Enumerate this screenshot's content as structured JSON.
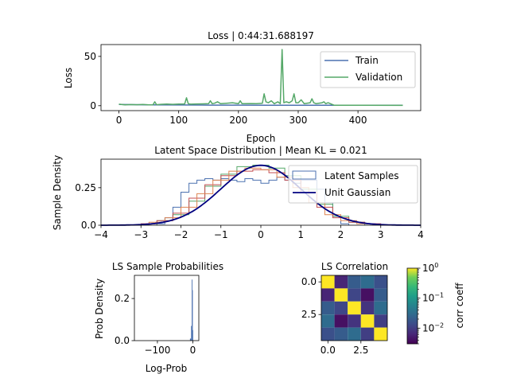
{
  "chart_data": [
    {
      "type": "line",
      "title": "Loss | 0:44:31.688197",
      "xlabel": "Epoch",
      "ylabel": "Loss",
      "xlim": [
        -30,
        505
      ],
      "ylim": [
        -5,
        62
      ],
      "xticks": [
        0,
        100,
        200,
        300,
        400
      ],
      "yticks": [
        0,
        50
      ],
      "grid": false,
      "legend_position": "top-right",
      "series": [
        {
          "name": "Train",
          "color": "#4c72b0",
          "x": [
            0,
            50,
            100,
            150,
            200,
            250,
            300,
            350,
            400,
            475
          ],
          "y": [
            1.2,
            0.8,
            0.7,
            0.6,
            0.6,
            0.5,
            0.5,
            0.5,
            0.4,
            0.4
          ]
        },
        {
          "name": "Validation",
          "color": "#55a868",
          "x": [
            0,
            10,
            20,
            30,
            40,
            50,
            57,
            60,
            63,
            70,
            80,
            90,
            100,
            110,
            113,
            116,
            120,
            130,
            140,
            150,
            153,
            156,
            160,
            165,
            170,
            180,
            190,
            200,
            203,
            206,
            210,
            220,
            230,
            240,
            243,
            246,
            250,
            255,
            260,
            266,
            270,
            273,
            276,
            280,
            285,
            290,
            293,
            296,
            300,
            305,
            310,
            320,
            323,
            326,
            330,
            340,
            343,
            346,
            350,
            360,
            400,
            475
          ],
          "y": [
            1.5,
            0.9,
            1.1,
            1.0,
            1.3,
            0.9,
            1.0,
            4.0,
            1.0,
            1.4,
            1.6,
            1.4,
            1.6,
            1.8,
            8.0,
            2.0,
            1.5,
            1.8,
            1.9,
            2.0,
            5.0,
            2.0,
            2.5,
            4.0,
            2.0,
            2.5,
            3.0,
            2.0,
            5.0,
            2.0,
            2.0,
            2.2,
            2.0,
            2.5,
            12.0,
            4.0,
            3.0,
            5.0,
            2.0,
            4.0,
            2.0,
            57.0,
            3.0,
            4.0,
            3.0,
            5.0,
            12.0,
            3.0,
            3.0,
            6.0,
            2.0,
            3.0,
            7.0,
            3.0,
            2.0,
            3.0,
            4.0,
            2.0,
            3.0,
            0.5,
            0.4,
            0.3
          ]
        }
      ]
    },
    {
      "type": "line",
      "title": "Latent Space Distribution | Mean KL = 0.021",
      "xlabel": "",
      "ylabel": "Sample Density",
      "xlim": [
        -4,
        4
      ],
      "ylim": [
        0,
        0.44
      ],
      "xticks": [
        -4,
        -3,
        -2,
        -1,
        0,
        1,
        2,
        3,
        4
      ],
      "yticks": [
        0.0,
        0.25
      ],
      "grid": false,
      "legend_position": "top-right",
      "legend": [
        {
          "name": "Latent Samples",
          "kind": "step",
          "color": "#4c72b0"
        },
        {
          "name": "Unit Gaussian",
          "kind": "line",
          "color": "#000080"
        }
      ],
      "gaussian": {
        "name": "Unit Gaussian",
        "color": "#000080",
        "mean": 0,
        "std": 1
      },
      "histograms": [
        {
          "color": "#4c72b0",
          "edges": [
            -2.6,
            -2.4,
            -2.2,
            -2.0,
            -1.8,
            -1.6,
            -1.4,
            -1.2,
            -1.0,
            -0.8,
            -0.6,
            -0.4,
            -0.2,
            0.0,
            0.2,
            0.4,
            0.6,
            0.8,
            1.0,
            1.2,
            1.4,
            1.6,
            1.8,
            2.0,
            2.2
          ],
          "values": [
            0.01,
            0.05,
            0.12,
            0.22,
            0.28,
            0.3,
            0.31,
            0.3,
            0.31,
            0.3,
            0.29,
            0.31,
            0.3,
            0.28,
            0.3,
            0.32,
            0.3,
            0.28,
            0.3,
            0.3,
            0.24,
            0.15,
            0.06,
            0.01
          ]
        },
        {
          "color": "#55a868",
          "edges": [
            -2.6,
            -2.2,
            -1.8,
            -1.4,
            -1.0,
            -0.6,
            -0.2,
            0.2,
            0.6,
            1.0,
            1.4,
            1.8,
            2.2,
            2.6
          ],
          "values": [
            0.03,
            0.07,
            0.16,
            0.26,
            0.34,
            0.39,
            0.4,
            0.38,
            0.33,
            0.24,
            0.14,
            0.06,
            0.02
          ]
        },
        {
          "color": "#c44e52",
          "edges": [
            -3.0,
            -2.6,
            -2.2,
            -1.8,
            -1.4,
            -1.0,
            -0.6,
            -0.2,
            0.2,
            0.6,
            1.0,
            1.4,
            1.8,
            2.2,
            2.6,
            3.0
          ],
          "values": [
            0.01,
            0.03,
            0.08,
            0.18,
            0.27,
            0.33,
            0.36,
            0.37,
            0.35,
            0.3,
            0.22,
            0.12,
            0.05,
            0.02,
            0.01
          ]
        },
        {
          "color": "#dd8452",
          "edges": [
            -2.8,
            -2.4,
            -2.0,
            -1.6,
            -1.2,
            -0.8,
            -0.4,
            0.0,
            0.4,
            0.8,
            1.2,
            1.6,
            2.0,
            2.4,
            2.8
          ],
          "values": [
            0.02,
            0.05,
            0.12,
            0.21,
            0.3,
            0.36,
            0.38,
            0.37,
            0.32,
            0.25,
            0.15,
            0.07,
            0.03,
            0.01
          ]
        }
      ]
    },
    {
      "type": "bar",
      "title": "LS Sample Probabilities",
      "xlabel": "Log-Prob",
      "ylabel": "Prob Density",
      "xlim": [
        -165,
        17
      ],
      "ylim": [
        0,
        0.31
      ],
      "xticks": [
        -100,
        0
      ],
      "yticks": [
        0.0,
        0.2
      ],
      "grid": false,
      "color": "#4c72b0",
      "bins": [
        {
          "x0": -8,
          "x1": -5,
          "value": 0.01
        },
        {
          "x0": -5,
          "x1": -3,
          "value": 0.07
        },
        {
          "x0": -3,
          "x1": -2,
          "value": 0.29
        },
        {
          "x0": -2,
          "x1": -1,
          "value": 0.24
        },
        {
          "x0": -1,
          "x1": 0,
          "value": 0.05
        }
      ]
    },
    {
      "type": "heatmap",
      "title": "LS Correlation",
      "xlim": [
        -0.5,
        4.5
      ],
      "ylim": [
        4.5,
        -0.5
      ],
      "xticks": [
        0.0,
        2.5
      ],
      "yticks": [
        0.0,
        2.5
      ],
      "colorscale": "viridis",
      "log_scale": true,
      "vmin": 0.003,
      "vmax": 1.0,
      "colorbar_label": "corr coeff",
      "colorbar_ticks": [
        {
          "value": 1,
          "label": "10",
          "exp": "0"
        },
        {
          "value": 0.1,
          "label": "10",
          "exp": "−1"
        },
        {
          "value": 0.01,
          "label": "10",
          "exp": "−2"
        }
      ],
      "matrix": [
        [
          1.0,
          0.006,
          0.02,
          0.03,
          0.015
        ],
        [
          0.006,
          1.0,
          0.012,
          0.004,
          0.02
        ],
        [
          0.02,
          0.012,
          1.0,
          0.008,
          0.03
        ],
        [
          0.03,
          0.004,
          0.008,
          1.0,
          0.01
        ],
        [
          0.015,
          0.02,
          0.03,
          0.01,
          1.0
        ]
      ]
    }
  ]
}
